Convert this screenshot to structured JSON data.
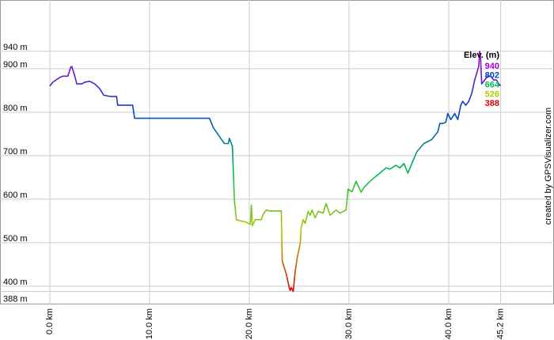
{
  "chart_data": {
    "type": "line",
    "x": [
      0,
      0.3,
      1.0,
      1.3,
      1.8,
      2.1,
      2.2,
      2.5,
      2.7,
      3.2,
      3.5,
      4.0,
      4.5,
      5.0,
      5.4,
      6.1,
      6.7,
      6.8,
      7.5,
      8.2,
      8.3,
      8.5,
      10.9,
      14.0,
      16.0,
      16.4,
      17.5,
      17.9,
      18.0,
      18.3,
      18.4,
      18.5,
      18.7,
      19.1,
      19.6,
      20.1,
      20.2,
      20.3,
      20.6,
      21.2,
      21.4,
      21.7,
      22.0,
      22.8,
      23.2,
      23.3,
      23.7,
      24.0,
      24.1,
      24.2,
      24.4,
      24.6,
      24.8,
      25.1,
      25.2,
      25.4,
      25.6,
      25.9,
      26.1,
      26.3,
      26.6,
      26.9,
      27.4,
      27.7,
      28.1,
      28.7,
      29.1,
      29.7,
      29.9,
      30.3,
      30.7,
      31.2,
      31.5,
      32.1,
      32.5,
      33.1,
      33.7,
      34.1,
      34.7,
      35.1,
      35.5,
      35.9,
      36.3,
      36.8,
      37.5,
      38.3,
      38.9,
      39.1,
      39.4,
      39.7,
      39.9,
      40.2,
      40.6,
      40.9,
      41.2,
      41.4,
      41.7,
      42.0,
      42.3,
      42.6,
      43.0,
      43.1,
      43.2,
      43.3,
      43.6,
      43.9,
      44.2,
      44.5,
      44.8,
      45.0,
      45.2
    ],
    "series": [
      {
        "values": [
          860,
          869,
          880,
          883,
          883,
          904,
          905,
          883,
          865,
          865,
          869,
          871,
          865,
          854,
          839,
          836,
          836,
          816,
          816,
          816,
          816,
          786,
          786,
          786,
          786,
          764,
          728,
          728,
          740,
          722,
          663,
          599,
          553,
          550,
          548,
          542,
          586,
          539,
          553,
          553,
          566,
          575,
          573,
          573,
          573,
          458,
          428,
          397,
          390,
          397,
          388,
          434,
          465,
          498,
          535,
          553,
          544,
          572,
          563,
          575,
          557,
          572,
          568,
          590,
          563,
          575,
          568,
          575,
          623,
          617,
          641,
          616,
          627,
          641,
          649,
          660,
          672,
          669,
          678,
          672,
          682,
          660,
          682,
          709,
          728,
          737,
          755,
          774,
          774,
          777,
          797,
          783,
          797,
          783,
          816,
          825,
          816,
          825,
          843,
          874,
          905,
          940,
          920,
          865,
          874,
          883,
          883,
          874,
          874,
          865,
          861
        ]
      }
    ],
    "xlim": [
      -5,
      50.55
    ],
    "ylim": [
      358,
      1058
    ],
    "xticks": [
      {
        "value": 0,
        "label": "0.0 km"
      },
      {
        "value": 10,
        "label": "10.0 km"
      },
      {
        "value": 20,
        "label": "20.0 km"
      },
      {
        "value": 30,
        "label": "30.0 km"
      },
      {
        "value": 40,
        "label": "40.0 km"
      },
      {
        "value": 45.2,
        "label": "45.2 km"
      }
    ],
    "yticks": [
      {
        "value": 940,
        "label": "940 m"
      },
      {
        "value": 900,
        "label": "900 m"
      },
      {
        "value": 800,
        "label": "800 m"
      },
      {
        "value": 700,
        "label": "700 m"
      },
      {
        "value": 600,
        "label": "600 m"
      },
      {
        "value": 500,
        "label": "500 m"
      },
      {
        "value": 400,
        "label": "400 m"
      },
      {
        "value": 388,
        "label": "388 m"
      }
    ],
    "grid": true,
    "legend": {
      "title": "Elev. (m)",
      "position": "top-right",
      "items": [
        {
          "value": 940,
          "color": "#aa00cc"
        },
        {
          "value": 802,
          "color": "#0044cc"
        },
        {
          "value": 664,
          "color": "#00bb55"
        },
        {
          "value": 526,
          "color": "#b5c800"
        },
        {
          "value": 388,
          "color": "#dd0000"
        }
      ]
    },
    "credit": "created by GPSVisualizer.com"
  }
}
